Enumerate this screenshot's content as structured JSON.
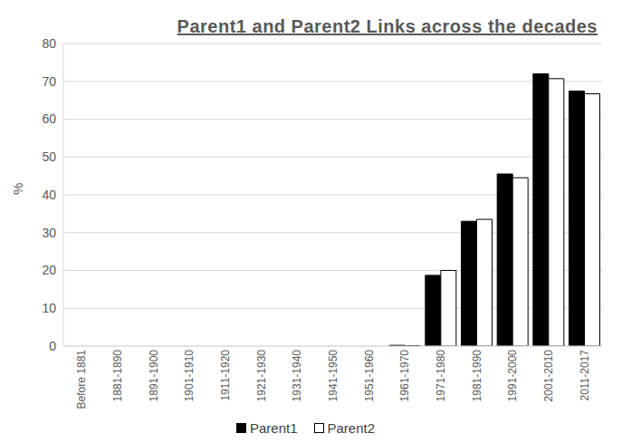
{
  "chart_data": {
    "type": "bar",
    "title": "Parent1 and Parent2 Links across the decades",
    "y_label": "%",
    "categories": [
      "Before 1881",
      "1881-1890",
      "1891-1900",
      "1901-1910",
      "1911-1920",
      "1921-1930",
      "1931-1940",
      "1941-1950",
      "1951-1960",
      "1961-1970",
      "1971-1980",
      "1981-1990",
      "1991-2000",
      "2001-2010",
      "2011-2017"
    ],
    "series": [
      {
        "name": "Parent1",
        "color": "#000000",
        "values": [
          0,
          0,
          0,
          0,
          0,
          0,
          0,
          0,
          0,
          0.2,
          18.7,
          33,
          45.5,
          72,
          67.4
        ]
      },
      {
        "name": "Parent2",
        "color": "#ffffff",
        "values": [
          0,
          0,
          0,
          0,
          0,
          0,
          0,
          0,
          0,
          0.1,
          20,
          33.5,
          44.5,
          70.7,
          66.7
        ]
      }
    ],
    "ylim": [
      0,
      80
    ],
    "yticks": [
      0,
      10,
      20,
      30,
      40,
      50,
      60,
      70,
      80
    ],
    "grid": true,
    "legend": "bottom"
  }
}
